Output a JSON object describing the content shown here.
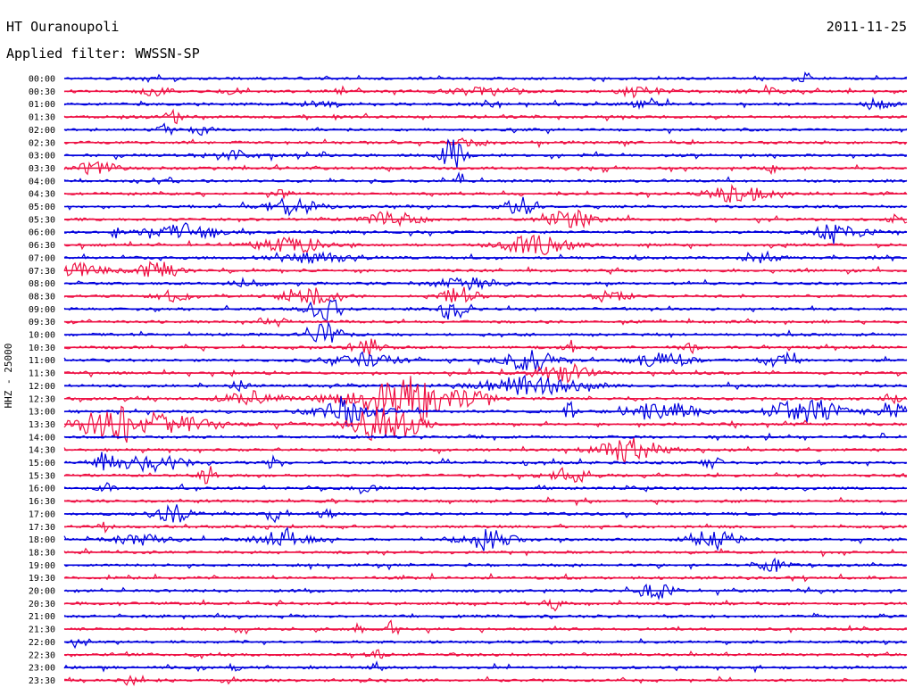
{
  "header": {
    "station_title": "HT Ouranoupoli",
    "date": "2011-11-25",
    "filter_line": "Applied filter: WWSSN-SP"
  },
  "side_label": "HHZ - 25000",
  "chart_data": {
    "type": "line",
    "title": "HT Ouranoupoli",
    "subtitle": "Applied filter: WWSSN-SP",
    "date": "2011-11-25",
    "ylabel": "HHZ - 25000",
    "xlabel": "",
    "x_minutes": [
      0,
      30
    ],
    "grid": false,
    "legend": "none",
    "series_colors": [
      "#0000dd",
      "#ee1144"
    ],
    "rows": [
      {
        "time": "00:00",
        "events": [
          {
            "x": 0.88,
            "amp": 8,
            "dur": 0.006
          }
        ]
      },
      {
        "time": "00:30",
        "events": [
          {
            "x": 0.11,
            "amp": 4,
            "dur": 0.02
          },
          {
            "x": 0.2,
            "amp": 4,
            "dur": 0.01
          },
          {
            "x": 0.33,
            "amp": 4,
            "dur": 0.01
          },
          {
            "x": 0.5,
            "amp": 4,
            "dur": 0.05
          },
          {
            "x": 0.68,
            "amp": 4,
            "dur": 0.04
          },
          {
            "x": 0.83,
            "amp": 4,
            "dur": 0.02
          }
        ]
      },
      {
        "time": "01:00",
        "events": [
          {
            "x": 0.3,
            "amp": 3,
            "dur": 0.02
          },
          {
            "x": 0.5,
            "amp": 3,
            "dur": 0.02
          },
          {
            "x": 0.69,
            "amp": 4,
            "dur": 0.02
          },
          {
            "x": 0.97,
            "amp": 3,
            "dur": 0.02
          }
        ]
      },
      {
        "time": "01:30",
        "events": [
          {
            "x": 0.13,
            "amp": 8,
            "dur": 0.01
          }
        ]
      },
      {
        "time": "02:00",
        "events": [
          {
            "x": 0.12,
            "amp": 6,
            "dur": 0.008
          },
          {
            "x": 0.16,
            "amp": 6,
            "dur": 0.01
          }
        ]
      },
      {
        "time": "02:30",
        "events": [
          {
            "x": 0.48,
            "amp": 4,
            "dur": 0.025
          }
        ]
      },
      {
        "time": "03:00",
        "events": [
          {
            "x": 0.2,
            "amp": 5,
            "dur": 0.03
          },
          {
            "x": 0.31,
            "amp": 10,
            "dur": 0.004
          },
          {
            "x": 0.46,
            "amp": 18,
            "dur": 0.014
          }
        ]
      },
      {
        "time": "03:30",
        "events": [
          {
            "x": 0.04,
            "amp": 7,
            "dur": 0.025
          },
          {
            "x": 0.84,
            "amp": 6,
            "dur": 0.006
          }
        ]
      },
      {
        "time": "04:00",
        "events": [
          {
            "x": 0.13,
            "amp": 9,
            "dur": 0.005
          },
          {
            "x": 0.47,
            "amp": 8,
            "dur": 0.006
          }
        ]
      },
      {
        "time": "04:30",
        "events": [
          {
            "x": 0.26,
            "amp": 4,
            "dur": 0.01
          },
          {
            "x": 0.8,
            "amp": 9,
            "dur": 0.035
          }
        ]
      },
      {
        "time": "05:00",
        "events": [
          {
            "x": 0.27,
            "amp": 9,
            "dur": 0.03
          },
          {
            "x": 0.54,
            "amp": 10,
            "dur": 0.02
          }
        ]
      },
      {
        "time": "05:30",
        "events": [
          {
            "x": 0.39,
            "amp": 9,
            "dur": 0.03
          },
          {
            "x": 0.6,
            "amp": 10,
            "dur": 0.03
          },
          {
            "x": 0.99,
            "amp": 6,
            "dur": 0.01
          }
        ]
      },
      {
        "time": "06:00",
        "events": [
          {
            "x": 0.06,
            "amp": 8,
            "dur": 0.004
          },
          {
            "x": 0.14,
            "amp": 8,
            "dur": 0.04
          },
          {
            "x": 0.92,
            "amp": 10,
            "dur": 0.03
          }
        ]
      },
      {
        "time": "06:30",
        "events": [
          {
            "x": 0.27,
            "amp": 8,
            "dur": 0.04
          },
          {
            "x": 0.56,
            "amp": 10,
            "dur": 0.04
          }
        ]
      },
      {
        "time": "07:00",
        "events": [
          {
            "x": 0.3,
            "amp": 5,
            "dur": 0.05
          },
          {
            "x": 0.68,
            "amp": 6,
            "dur": 0.005
          },
          {
            "x": 0.83,
            "amp": 6,
            "dur": 0.02
          }
        ]
      },
      {
        "time": "07:30",
        "events": [
          {
            "x": 0.02,
            "amp": 8,
            "dur": 0.03
          },
          {
            "x": 0.11,
            "amp": 9,
            "dur": 0.025
          }
        ]
      },
      {
        "time": "08:00",
        "events": [
          {
            "x": 0.22,
            "amp": 5,
            "dur": 0.02
          },
          {
            "x": 0.48,
            "amp": 6,
            "dur": 0.04
          }
        ]
      },
      {
        "time": "08:30",
        "events": [
          {
            "x": 0.13,
            "amp": 6,
            "dur": 0.02
          },
          {
            "x": 0.29,
            "amp": 10,
            "dur": 0.03
          },
          {
            "x": 0.47,
            "amp": 10,
            "dur": 0.02
          },
          {
            "x": 0.65,
            "amp": 7,
            "dur": 0.02
          }
        ]
      },
      {
        "time": "09:00",
        "events": [
          {
            "x": 0.31,
            "amp": 13,
            "dur": 0.02
          },
          {
            "x": 0.46,
            "amp": 15,
            "dur": 0.015
          }
        ]
      },
      {
        "time": "09:30",
        "events": [
          {
            "x": 0.25,
            "amp": 4,
            "dur": 0.02
          }
        ]
      },
      {
        "time": "10:00",
        "events": [
          {
            "x": 0.31,
            "amp": 12,
            "dur": 0.02
          }
        ]
      },
      {
        "time": "10:30",
        "events": [
          {
            "x": 0.36,
            "amp": 9,
            "dur": 0.02
          },
          {
            "x": 0.6,
            "amp": 12,
            "dur": 0.006
          },
          {
            "x": 0.74,
            "amp": 8,
            "dur": 0.01
          }
        ]
      },
      {
        "time": "11:00",
        "events": [
          {
            "x": 0.35,
            "amp": 8,
            "dur": 0.04
          },
          {
            "x": 0.55,
            "amp": 12,
            "dur": 0.03
          },
          {
            "x": 0.71,
            "amp": 10,
            "dur": 0.03
          },
          {
            "x": 0.85,
            "amp": 8,
            "dur": 0.02
          }
        ]
      },
      {
        "time": "11:30",
        "events": [
          {
            "x": 0.59,
            "amp": 12,
            "dur": 0.03
          }
        ]
      },
      {
        "time": "12:00",
        "events": [
          {
            "x": 0.21,
            "amp": 6,
            "dur": 0.01
          },
          {
            "x": 0.55,
            "amp": 10,
            "dur": 0.06
          }
        ]
      },
      {
        "time": "12:30",
        "events": [
          {
            "x": 0.22,
            "amp": 8,
            "dur": 0.03
          },
          {
            "x": 0.38,
            "amp": 12,
            "dur": 0.06
          },
          {
            "x": 0.42,
            "amp": 17,
            "dur": 0.04
          },
          {
            "x": 0.49,
            "amp": 8,
            "dur": 0.02
          },
          {
            "x": 0.98,
            "amp": 7,
            "dur": 0.01
          }
        ]
      },
      {
        "time": "13:00",
        "events": [
          {
            "x": 0.33,
            "amp": 16,
            "dur": 0.015
          },
          {
            "x": 0.34,
            "amp": 7,
            "dur": 0.05
          },
          {
            "x": 0.6,
            "amp": 10,
            "dur": 0.006
          },
          {
            "x": 0.71,
            "amp": 10,
            "dur": 0.04
          },
          {
            "x": 0.88,
            "amp": 14,
            "dur": 0.04
          },
          {
            "x": 0.98,
            "amp": 9,
            "dur": 0.02
          }
        ]
      },
      {
        "time": "13:30",
        "events": [
          {
            "x": 0.06,
            "amp": 14,
            "dur": 0.04
          },
          {
            "x": 0.11,
            "amp": 10,
            "dur": 0.07
          },
          {
            "x": 0.38,
            "amp": 20,
            "dur": 0.04
          }
        ]
      },
      {
        "time": "14:00",
        "events": []
      },
      {
        "time": "14:30",
        "events": [
          {
            "x": 0.67,
            "amp": 14,
            "dur": 0.035
          }
        ]
      },
      {
        "time": "15:00",
        "events": [
          {
            "x": 0.05,
            "amp": 12,
            "dur": 0.02
          },
          {
            "x": 0.11,
            "amp": 12,
            "dur": 0.03
          },
          {
            "x": 0.25,
            "amp": 6,
            "dur": 0.01
          },
          {
            "x": 0.77,
            "amp": 6,
            "dur": 0.01
          }
        ]
      },
      {
        "time": "15:30",
        "events": [
          {
            "x": 0.17,
            "amp": 12,
            "dur": 0.008
          },
          {
            "x": 0.6,
            "amp": 10,
            "dur": 0.025
          }
        ]
      },
      {
        "time": "16:00",
        "events": [
          {
            "x": 0.05,
            "amp": 4,
            "dur": 0.01
          },
          {
            "x": 0.36,
            "amp": 9,
            "dur": 0.01
          }
        ]
      },
      {
        "time": "16:30",
        "events": []
      },
      {
        "time": "17:00",
        "events": [
          {
            "x": 0.13,
            "amp": 11,
            "dur": 0.02
          },
          {
            "x": 0.25,
            "amp": 5,
            "dur": 0.01
          },
          {
            "x": 0.31,
            "amp": 5,
            "dur": 0.01
          }
        ]
      },
      {
        "time": "17:30",
        "events": [
          {
            "x": 0.05,
            "amp": 10,
            "dur": 0.006
          }
        ]
      },
      {
        "time": "18:00",
        "events": [
          {
            "x": 0.09,
            "amp": 6,
            "dur": 0.03
          },
          {
            "x": 0.26,
            "amp": 9,
            "dur": 0.03
          },
          {
            "x": 0.5,
            "amp": 12,
            "dur": 0.03
          },
          {
            "x": 0.77,
            "amp": 10,
            "dur": 0.03
          }
        ]
      },
      {
        "time": "18:30",
        "events": []
      },
      {
        "time": "19:00",
        "events": [
          {
            "x": 0.84,
            "amp": 7,
            "dur": 0.02
          }
        ]
      },
      {
        "time": "19:30",
        "events": []
      },
      {
        "time": "20:00",
        "events": [
          {
            "x": 0.7,
            "amp": 9,
            "dur": 0.02
          }
        ]
      },
      {
        "time": "20:30",
        "events": [
          {
            "x": 0.58,
            "amp": 5,
            "dur": 0.01
          }
        ]
      },
      {
        "time": "21:00",
        "events": []
      },
      {
        "time": "21:30",
        "events": [
          {
            "x": 0.35,
            "amp": 6,
            "dur": 0.006
          },
          {
            "x": 0.39,
            "amp": 10,
            "dur": 0.006
          }
        ]
      },
      {
        "time": "22:00",
        "events": [
          {
            "x": 0.02,
            "amp": 4,
            "dur": 0.01
          }
        ]
      },
      {
        "time": "22:30",
        "events": [
          {
            "x": 0.37,
            "amp": 5,
            "dur": 0.01
          }
        ]
      },
      {
        "time": "23:00",
        "events": [
          {
            "x": 0.2,
            "amp": 5,
            "dur": 0.008
          },
          {
            "x": 0.37,
            "amp": 5,
            "dur": 0.008
          }
        ]
      },
      {
        "time": "23:30",
        "events": [
          {
            "x": 0.08,
            "amp": 4,
            "dur": 0.01
          }
        ]
      }
    ]
  }
}
